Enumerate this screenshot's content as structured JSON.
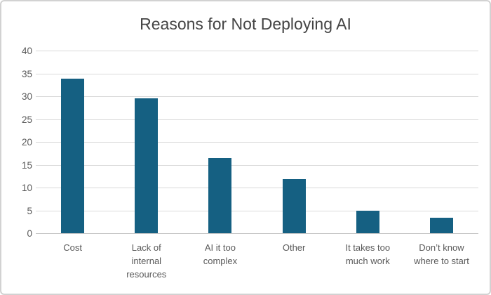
{
  "chart": {
    "frame_background": "#ffffff",
    "frame_border_color": "#d2d2d2"
  },
  "chart_data": {
    "type": "bar",
    "title": "Reasons for Not Deploying AI",
    "categories": [
      "Cost",
      "Lack of internal resources",
      "AI it too complex",
      "Other",
      "It takes too much work",
      "Don’t know where to start"
    ],
    "x_tick_lines": [
      [
        "Cost"
      ],
      [
        "Lack of",
        "internal",
        "resources"
      ],
      [
        "AI it too",
        "complex"
      ],
      [
        "Other"
      ],
      [
        "It takes too",
        "much work"
      ],
      [
        "Don’t know",
        "where to start"
      ]
    ],
    "values": [
      33.8,
      29.6,
      16.5,
      11.8,
      4.9,
      3.4
    ],
    "xlabel": "",
    "ylabel": "",
    "ylim": [
      0,
      40
    ],
    "yticks": [
      0,
      5,
      10,
      15,
      20,
      25,
      30,
      35,
      40
    ],
    "grid": true,
    "legend": false,
    "bar_color": "#156082",
    "gridline_color": "#d9d9d9",
    "axis_line_color": "#c6c6c6",
    "tick_label_color": "#595959",
    "title_color": "#444444"
  }
}
